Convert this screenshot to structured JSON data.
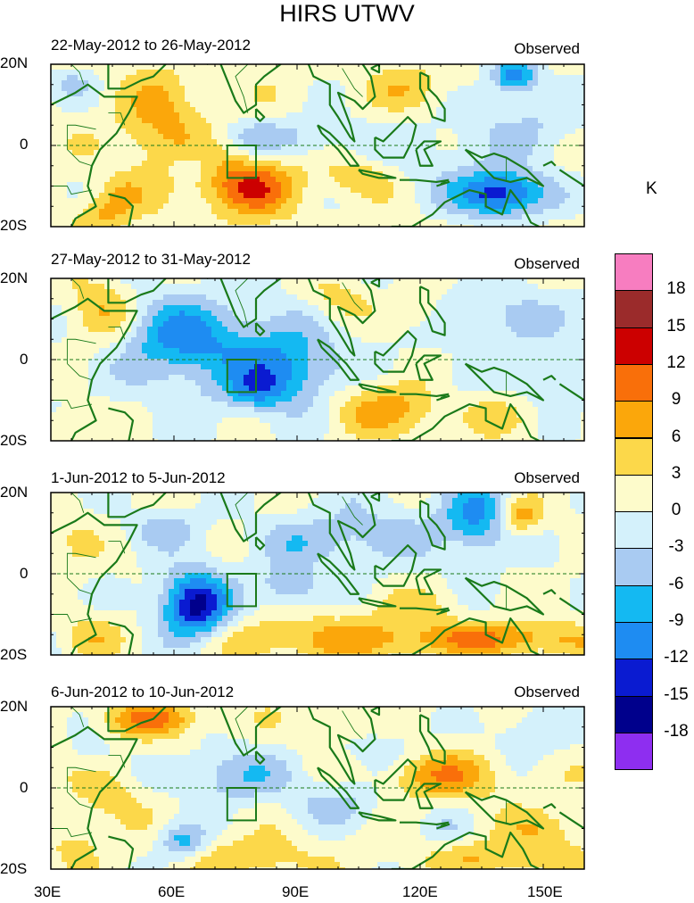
{
  "title": "HIRS UTWV",
  "unit": "K",
  "panels": [
    {
      "date": "22-May-2012 to 26-May-2012",
      "label": "Observed"
    },
    {
      "date": "27-May-2012 to 31-May-2012",
      "label": "Observed"
    },
    {
      "date": "1-Jun-2012 to 5-Jun-2012",
      "label": "Observed"
    },
    {
      "date": "6-Jun-2012 to 10-Jun-2012",
      "label": "Observed"
    }
  ],
  "lat_labels": [
    "20N",
    "0",
    "20S"
  ],
  "lon_labels": [
    "30E",
    "60E",
    "90E",
    "120E",
    "150E"
  ],
  "colorbar": {
    "labels": [
      "18",
      "15",
      "12",
      "9",
      "6",
      "3",
      "0",
      "-3",
      "-6",
      "-9",
      "-12",
      "-15",
      "-18"
    ],
    "colors": [
      "#f77dc0",
      "#9b2b2b",
      "#cc0000",
      "#f96f0a",
      "#fba70b",
      "#fcd84a",
      "#fdfbcb",
      "#d4f1fb",
      "#a9cbf2",
      "#14b9f2",
      "#1e8cf2",
      "#0a1bd1",
      "#00008c",
      "#8e2ef0"
    ]
  },
  "map": {
    "lon_range": [
      30,
      160
    ],
    "lat_range": [
      -20,
      20
    ],
    "land_color": "#1a7a1a",
    "box": {
      "lon": [
        73,
        80
      ],
      "lat": [
        -8,
        0
      ]
    }
  }
}
